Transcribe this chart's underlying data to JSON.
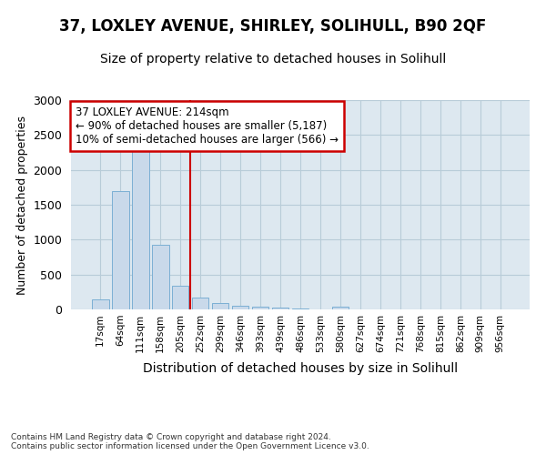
{
  "title1": "37, LOXLEY AVENUE, SHIRLEY, SOLIHULL, B90 2QF",
  "title2": "Size of property relative to detached houses in Solihull",
  "xlabel": "Distribution of detached houses by size in Solihull",
  "ylabel": "Number of detached properties",
  "bin_labels": [
    "17sqm",
    "64sqm",
    "111sqm",
    "158sqm",
    "205sqm",
    "252sqm",
    "299sqm",
    "346sqm",
    "393sqm",
    "439sqm",
    "486sqm",
    "533sqm",
    "580sqm",
    "627sqm",
    "674sqm",
    "721sqm",
    "768sqm",
    "815sqm",
    "862sqm",
    "909sqm",
    "956sqm"
  ],
  "bar_values": [
    140,
    1700,
    2380,
    920,
    340,
    165,
    90,
    55,
    45,
    25,
    15,
    5,
    35,
    2,
    2,
    0,
    0,
    0,
    0,
    0,
    0
  ],
  "bar_color": "#c9d9ea",
  "bar_edge_color": "#7bafd4",
  "vline_x": 4.5,
  "annotation_text": "37 LOXLEY AVENUE: 214sqm\n← 90% of detached houses are smaller (5,187)\n10% of semi-detached houses are larger (566) →",
  "annotation_box_color": "#ffffff",
  "annotation_box_edge_color": "#cc0000",
  "vline_color": "#cc0000",
  "ylim": [
    0,
    3000
  ],
  "yticks": [
    0,
    500,
    1000,
    1500,
    2000,
    2500,
    3000
  ],
  "footnote": "Contains HM Land Registry data © Crown copyright and database right 2024.\nContains public sector information licensed under the Open Government Licence v3.0.",
  "plot_bg_color": "#dde8f0",
  "grid_color": "#b8ccd8",
  "title1_fontsize": 12,
  "title2_fontsize": 10
}
